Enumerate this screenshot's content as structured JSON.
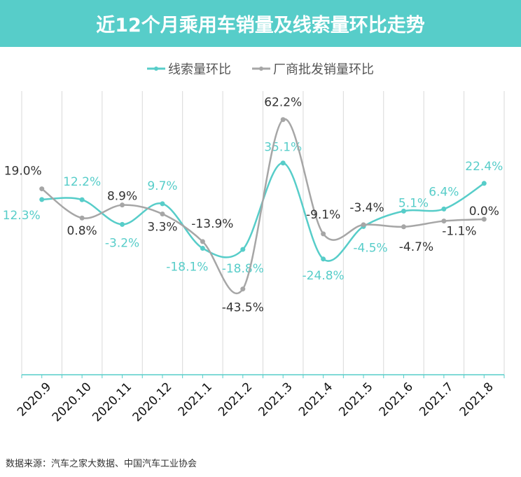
{
  "chart_data": {
    "type": "line",
    "title": "近12个月乘用车销量及线索量环比走势",
    "categories": [
      "2020.9",
      "2020.10",
      "2020.11",
      "2020.12",
      "2021.1",
      "2021.2",
      "2021.3",
      "2021.4",
      "2021.5",
      "2021.6",
      "2021.7",
      "2021.8"
    ],
    "series": [
      {
        "name": "线索量环比",
        "color": "#57cdc9",
        "values": [
          12.3,
          12.2,
          -3.2,
          9.7,
          -18.1,
          -18.8,
          35.1,
          -24.8,
          -4.5,
          5.1,
          6.4,
          22.4
        ],
        "labels": [
          "12.3%",
          "12.2%",
          "-3.2%",
          "9.7%",
          "-18.1%",
          "-18.8%",
          "35.1%",
          "-24.8%",
          "-4.5%",
          "5.1%",
          "6.4%",
          "22.4%"
        ]
      },
      {
        "name": "厂商批发销量环比",
        "color": "#a6a6a6",
        "values": [
          19.0,
          0.8,
          8.9,
          3.3,
          -13.9,
          -43.5,
          62.2,
          -9.1,
          -3.4,
          -4.7,
          -1.1,
          0.0
        ],
        "labels": [
          "19.0%",
          "0.8%",
          "8.9%",
          "3.3%",
          "-13.9%",
          "-43.5%",
          "62.2%",
          "-9.1%",
          "-3.4%",
          "-4.7%",
          "-1.1%",
          "0.0%"
        ]
      }
    ],
    "ylim": [
      -97,
      80
    ],
    "grid": "vertical",
    "legend": "top-center",
    "smooth": true
  },
  "source": "数据来源：汽车之家大数据、中国汽车工业协会"
}
